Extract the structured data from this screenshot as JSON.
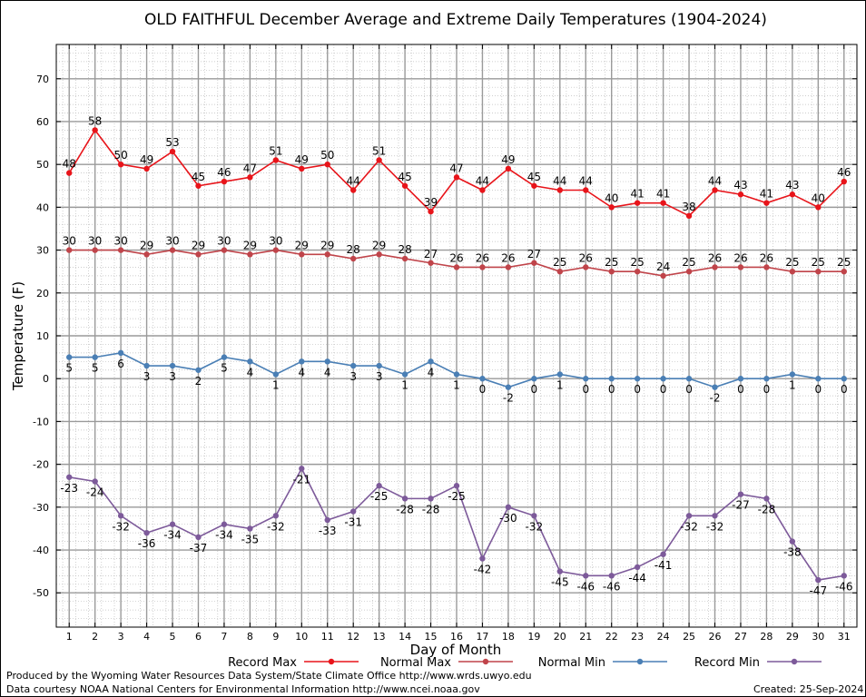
{
  "chart_data": {
    "type": "line",
    "title": "OLD FAITHFUL December Average and Extreme Daily Temperatures (1904-2024)",
    "xlabel": "Day of Month",
    "ylabel": "Temperature (F)",
    "ylim": [
      -58,
      78
    ],
    "yticks": [
      -50,
      -40,
      -30,
      -20,
      -10,
      0,
      10,
      20,
      30,
      40,
      50,
      60,
      70
    ],
    "x": [
      1,
      2,
      3,
      4,
      5,
      6,
      7,
      8,
      9,
      10,
      11,
      12,
      13,
      14,
      15,
      16,
      17,
      18,
      19,
      20,
      21,
      22,
      23,
      24,
      25,
      26,
      27,
      28,
      29,
      30,
      31
    ],
    "grid": true,
    "legend_position": "bottom",
    "series": [
      {
        "name": "Record Max",
        "color": "#e8141a",
        "values": [
          48,
          58,
          50,
          49,
          53,
          45,
          46,
          47,
          51,
          49,
          50,
          44,
          51,
          45,
          39,
          47,
          44,
          49,
          45,
          44,
          44,
          40,
          41,
          41,
          38,
          44,
          43,
          41,
          43,
          40,
          46
        ]
      },
      {
        "name": "Normal Max",
        "color": "#c0444a",
        "values": [
          30,
          30,
          30,
          29,
          30,
          29,
          30,
          29,
          30,
          29,
          29,
          28,
          29,
          28,
          27,
          26,
          26,
          26,
          27,
          25,
          26,
          25,
          25,
          24,
          25,
          26,
          26,
          26,
          25,
          25,
          25
        ]
      },
      {
        "name": "Normal Min",
        "color": "#4a7fb5",
        "values": [
          5,
          5,
          6,
          3,
          3,
          2,
          5,
          4,
          1,
          4,
          4,
          3,
          3,
          1,
          4,
          1,
          0,
          -2,
          0,
          1,
          0,
          0,
          0,
          0,
          0,
          -2,
          0,
          0,
          1,
          0,
          0
        ]
      },
      {
        "name": "Record Min",
        "color": "#7d5a9a",
        "values": [
          -23,
          -24,
          -32,
          -36,
          -34,
          -37,
          -34,
          -35,
          -32,
          -21,
          -33,
          -31,
          -25,
          -28,
          -28,
          -25,
          -42,
          -30,
          -32,
          -45,
          -46,
          -46,
          -44,
          -41,
          -32,
          -32,
          -27,
          -28,
          -38,
          -47,
          -46
        ]
      }
    ]
  },
  "footer": {
    "line1": "Produced by the Wyoming Water Resources Data System/State Climate Office http://www.wrds.uwyo.edu",
    "line2": "Data courtesy NOAA National Centers for Environmental Information http://www.ncei.noaa.gov",
    "created": "Created:  25-Sep-2024"
  }
}
